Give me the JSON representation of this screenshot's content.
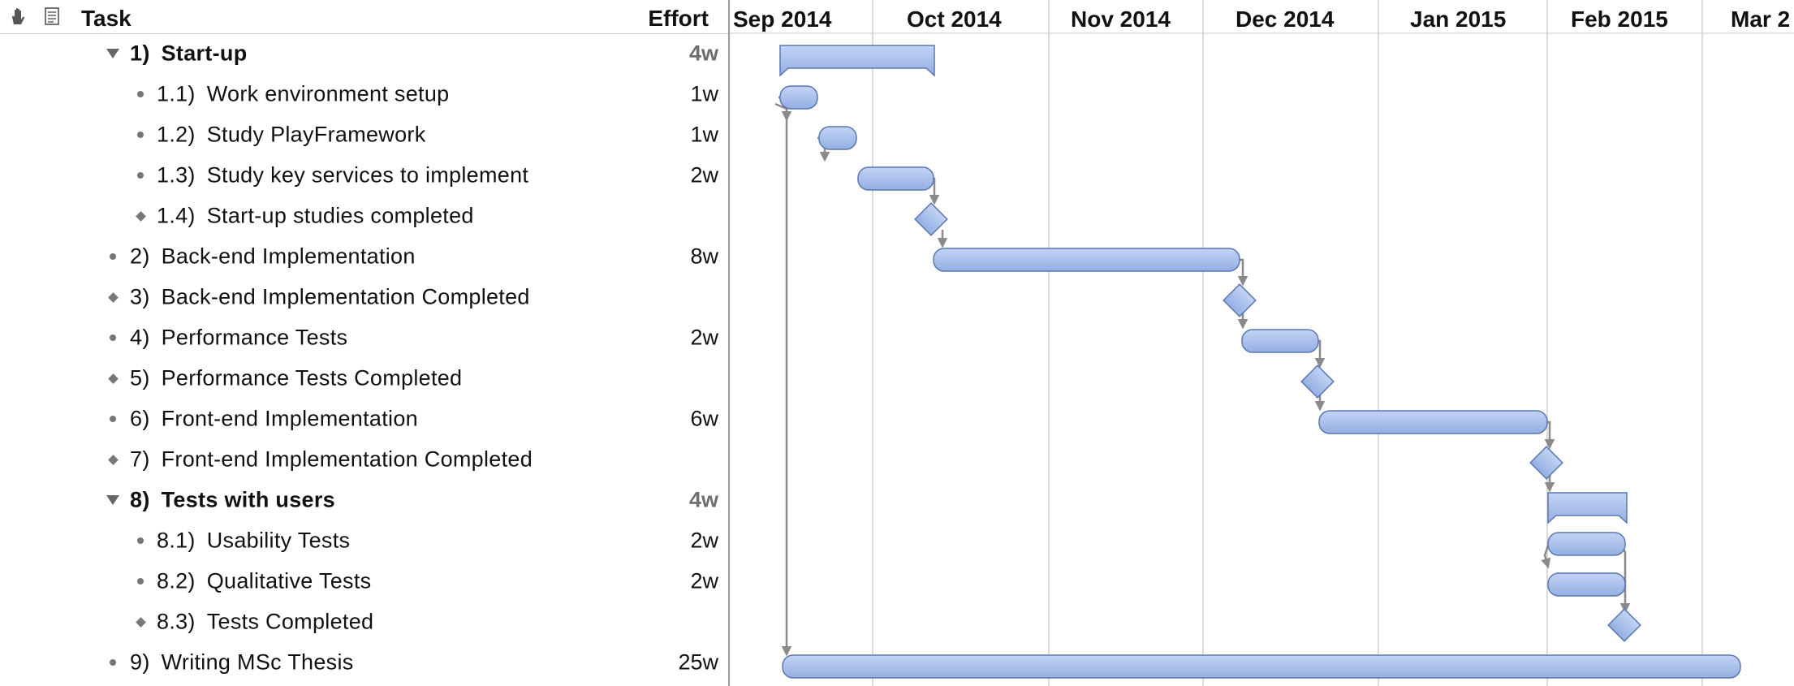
{
  "header": {
    "task_title": "Task",
    "effort_title": "Effort",
    "icons": [
      "hand-icon",
      "note-icon"
    ]
  },
  "timeline": {
    "months": [
      "Sep 2014",
      "Oct 2014",
      "Nov 2014",
      "Dec 2014",
      "Jan 2015",
      "Feb 2015",
      "Mar 2"
    ]
  },
  "colors": {
    "bar_fill": "#a6bde9",
    "bar_stroke": "#5b77b0",
    "grid": "#cfcfcf",
    "arrow": "#8a8a8a"
  },
  "tasks": [
    {
      "num": "1)",
      "name": "Start-up",
      "effort": "4w",
      "kind": "group",
      "level": 0
    },
    {
      "num": "1.1)",
      "name": "Work environment setup",
      "effort": "1w",
      "kind": "task",
      "level": 1
    },
    {
      "num": "1.2)",
      "name": "Study PlayFramework",
      "effort": "1w",
      "kind": "task",
      "level": 1
    },
    {
      "num": "1.3)",
      "name": "Study key services to implement",
      "effort": "2w",
      "kind": "task",
      "level": 1
    },
    {
      "num": "1.4)",
      "name": "Start-up studies completed",
      "effort": "",
      "kind": "milestone",
      "level": 1
    },
    {
      "num": "2)",
      "name": "Back-end Implementation",
      "effort": "8w",
      "kind": "task",
      "level": 0
    },
    {
      "num": "3)",
      "name": "Back-end Implementation Completed",
      "effort": "",
      "kind": "milestone",
      "level": 0
    },
    {
      "num": "4)",
      "name": "Performance Tests",
      "effort": "2w",
      "kind": "task",
      "level": 0
    },
    {
      "num": "5)",
      "name": "Performance Tests Completed",
      "effort": "",
      "kind": "milestone",
      "level": 0
    },
    {
      "num": "6)",
      "name": "Front-end Implementation",
      "effort": "6w",
      "kind": "task",
      "level": 0
    },
    {
      "num": "7)",
      "name": "Front-end Implementation Completed",
      "effort": "",
      "kind": "milestone",
      "level": 0
    },
    {
      "num": "8)",
      "name": "Tests with users",
      "effort": "4w",
      "kind": "group",
      "level": 0
    },
    {
      "num": "8.1)",
      "name": "Usability Tests",
      "effort": "2w",
      "kind": "task",
      "level": 1
    },
    {
      "num": "8.2)",
      "name": "Qualitative Tests",
      "effort": "2w",
      "kind": "task",
      "level": 1
    },
    {
      "num": "8.3)",
      "name": "Tests Completed",
      "effort": "",
      "kind": "milestone",
      "level": 1
    },
    {
      "num": "9)",
      "name": "Writing MSc Thesis",
      "effort": "25w",
      "kind": "task",
      "level": 0
    }
  ]
}
